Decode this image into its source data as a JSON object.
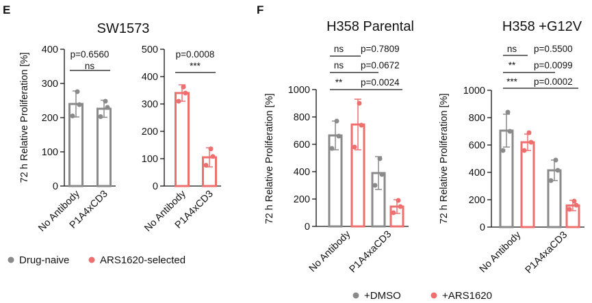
{
  "panel_letters": {
    "e": "E",
    "f": "F"
  },
  "colors": {
    "drug_naive": "#8a8a8a",
    "ars": "#ef6f6f",
    "axis": "#111111"
  },
  "legend_e": [
    {
      "label": "Drug-naive",
      "color": "#8a8a8a"
    },
    {
      "label": "ARS1620-selected",
      "color": "#ef6f6f"
    }
  ],
  "legend_f": [
    {
      "label": "+DMSO",
      "color": "#8a8a8a"
    },
    {
      "label": "+ARS1620",
      "color": "#ef6f6f"
    }
  ],
  "chart_data": [
    {
      "id": "sw1573_naive",
      "type": "bar",
      "title": "SW1573",
      "ylabel": "72 h Relative Proliferation [%]",
      "ylim": [
        0,
        400
      ],
      "yticks": [
        0,
        100,
        200,
        300,
        400
      ],
      "categories": [
        "No Antibody",
        "P1A4xCD3"
      ],
      "series": [
        {
          "name": "Drug-naive",
          "color": "#8a8a8a",
          "values": [
            240,
            226
          ],
          "err": [
            38,
            25
          ],
          "points": [
            [
              276,
              238,
              205
            ],
            [
              248,
              230,
              203
            ]
          ]
        }
      ],
      "comparisons": [
        {
          "stars": "ns",
          "p": "p=0.6560"
        }
      ]
    },
    {
      "id": "sw1573_ars",
      "type": "bar",
      "ylim": [
        0,
        500
      ],
      "yticks": [
        0,
        100,
        200,
        300,
        400,
        500
      ],
      "categories": [
        "No Antibody",
        "P1A4xCD3"
      ],
      "series": [
        {
          "name": "ARS1620-selected",
          "color": "#ef6f6f",
          "values": [
            340,
            105
          ],
          "err": [
            30,
            35
          ],
          "points": [
            [
              362,
              340,
              310
            ],
            [
              136,
              108,
              76
            ]
          ]
        }
      ],
      "comparisons": [
        {
          "stars": "***",
          "p": "p=0.0008"
        }
      ]
    },
    {
      "id": "h358_parental",
      "type": "bar",
      "title": "H358 Parental",
      "ylabel": "72 h Relative Proliferation [%]",
      "ylim": [
        0,
        1000
      ],
      "yticks": [
        0,
        200,
        400,
        600,
        800,
        1000
      ],
      "categories": [
        "No Antibody",
        "P1A4xaCD3"
      ],
      "series": [
        {
          "name": "+DMSO",
          "color": "#8a8a8a",
          "values": [
            665,
            390
          ],
          "err": [
            105,
            120
          ],
          "points": [
            [
              770,
              660,
              570
            ],
            [
              495,
              380,
              300
            ]
          ]
        },
        {
          "name": "+ARS1620",
          "color": "#ef6f6f",
          "values": [
            745,
            145
          ],
          "err": [
            185,
            50
          ],
          "points": [
            [
              900,
              740,
              580
            ],
            [
              190,
              145,
              100
            ]
          ]
        }
      ],
      "comparisons": [
        {
          "stars": "ns",
          "p": "p=0.7809"
        },
        {
          "stars": "ns",
          "p": "p=0.0672"
        },
        {
          "stars": "**",
          "p": "p=0.0024"
        }
      ]
    },
    {
      "id": "h358_g12v",
      "type": "bar",
      "title": "H358 +G12V",
      "ylabel": "72 h Relative Proliferation [%]",
      "ylim": [
        0,
        1000
      ],
      "yticks": [
        0,
        200,
        400,
        600,
        800,
        1000
      ],
      "categories": [
        "No Antibody",
        "P1A4xaCD3"
      ],
      "series": [
        {
          "name": "+DMSO",
          "color": "#8a8a8a",
          "values": [
            705,
            415
          ],
          "err": [
            120,
            75
          ],
          "points": [
            [
              840,
              700,
              560
            ],
            [
              490,
              415,
              340
            ]
          ]
        },
        {
          "name": "+ARS1620",
          "color": "#ef6f6f",
          "values": [
            620,
            158
          ],
          "err": [
            60,
            38
          ],
          "points": [
            [
              690,
              620,
              560
            ],
            [
              190,
              160,
              130
            ]
          ]
        }
      ],
      "comparisons": [
        {
          "stars": "ns",
          "p": "p=0.5500"
        },
        {
          "stars": "**",
          "p": "p=0.0099"
        },
        {
          "stars": "***",
          "p": "p=0.0002"
        }
      ]
    }
  ]
}
